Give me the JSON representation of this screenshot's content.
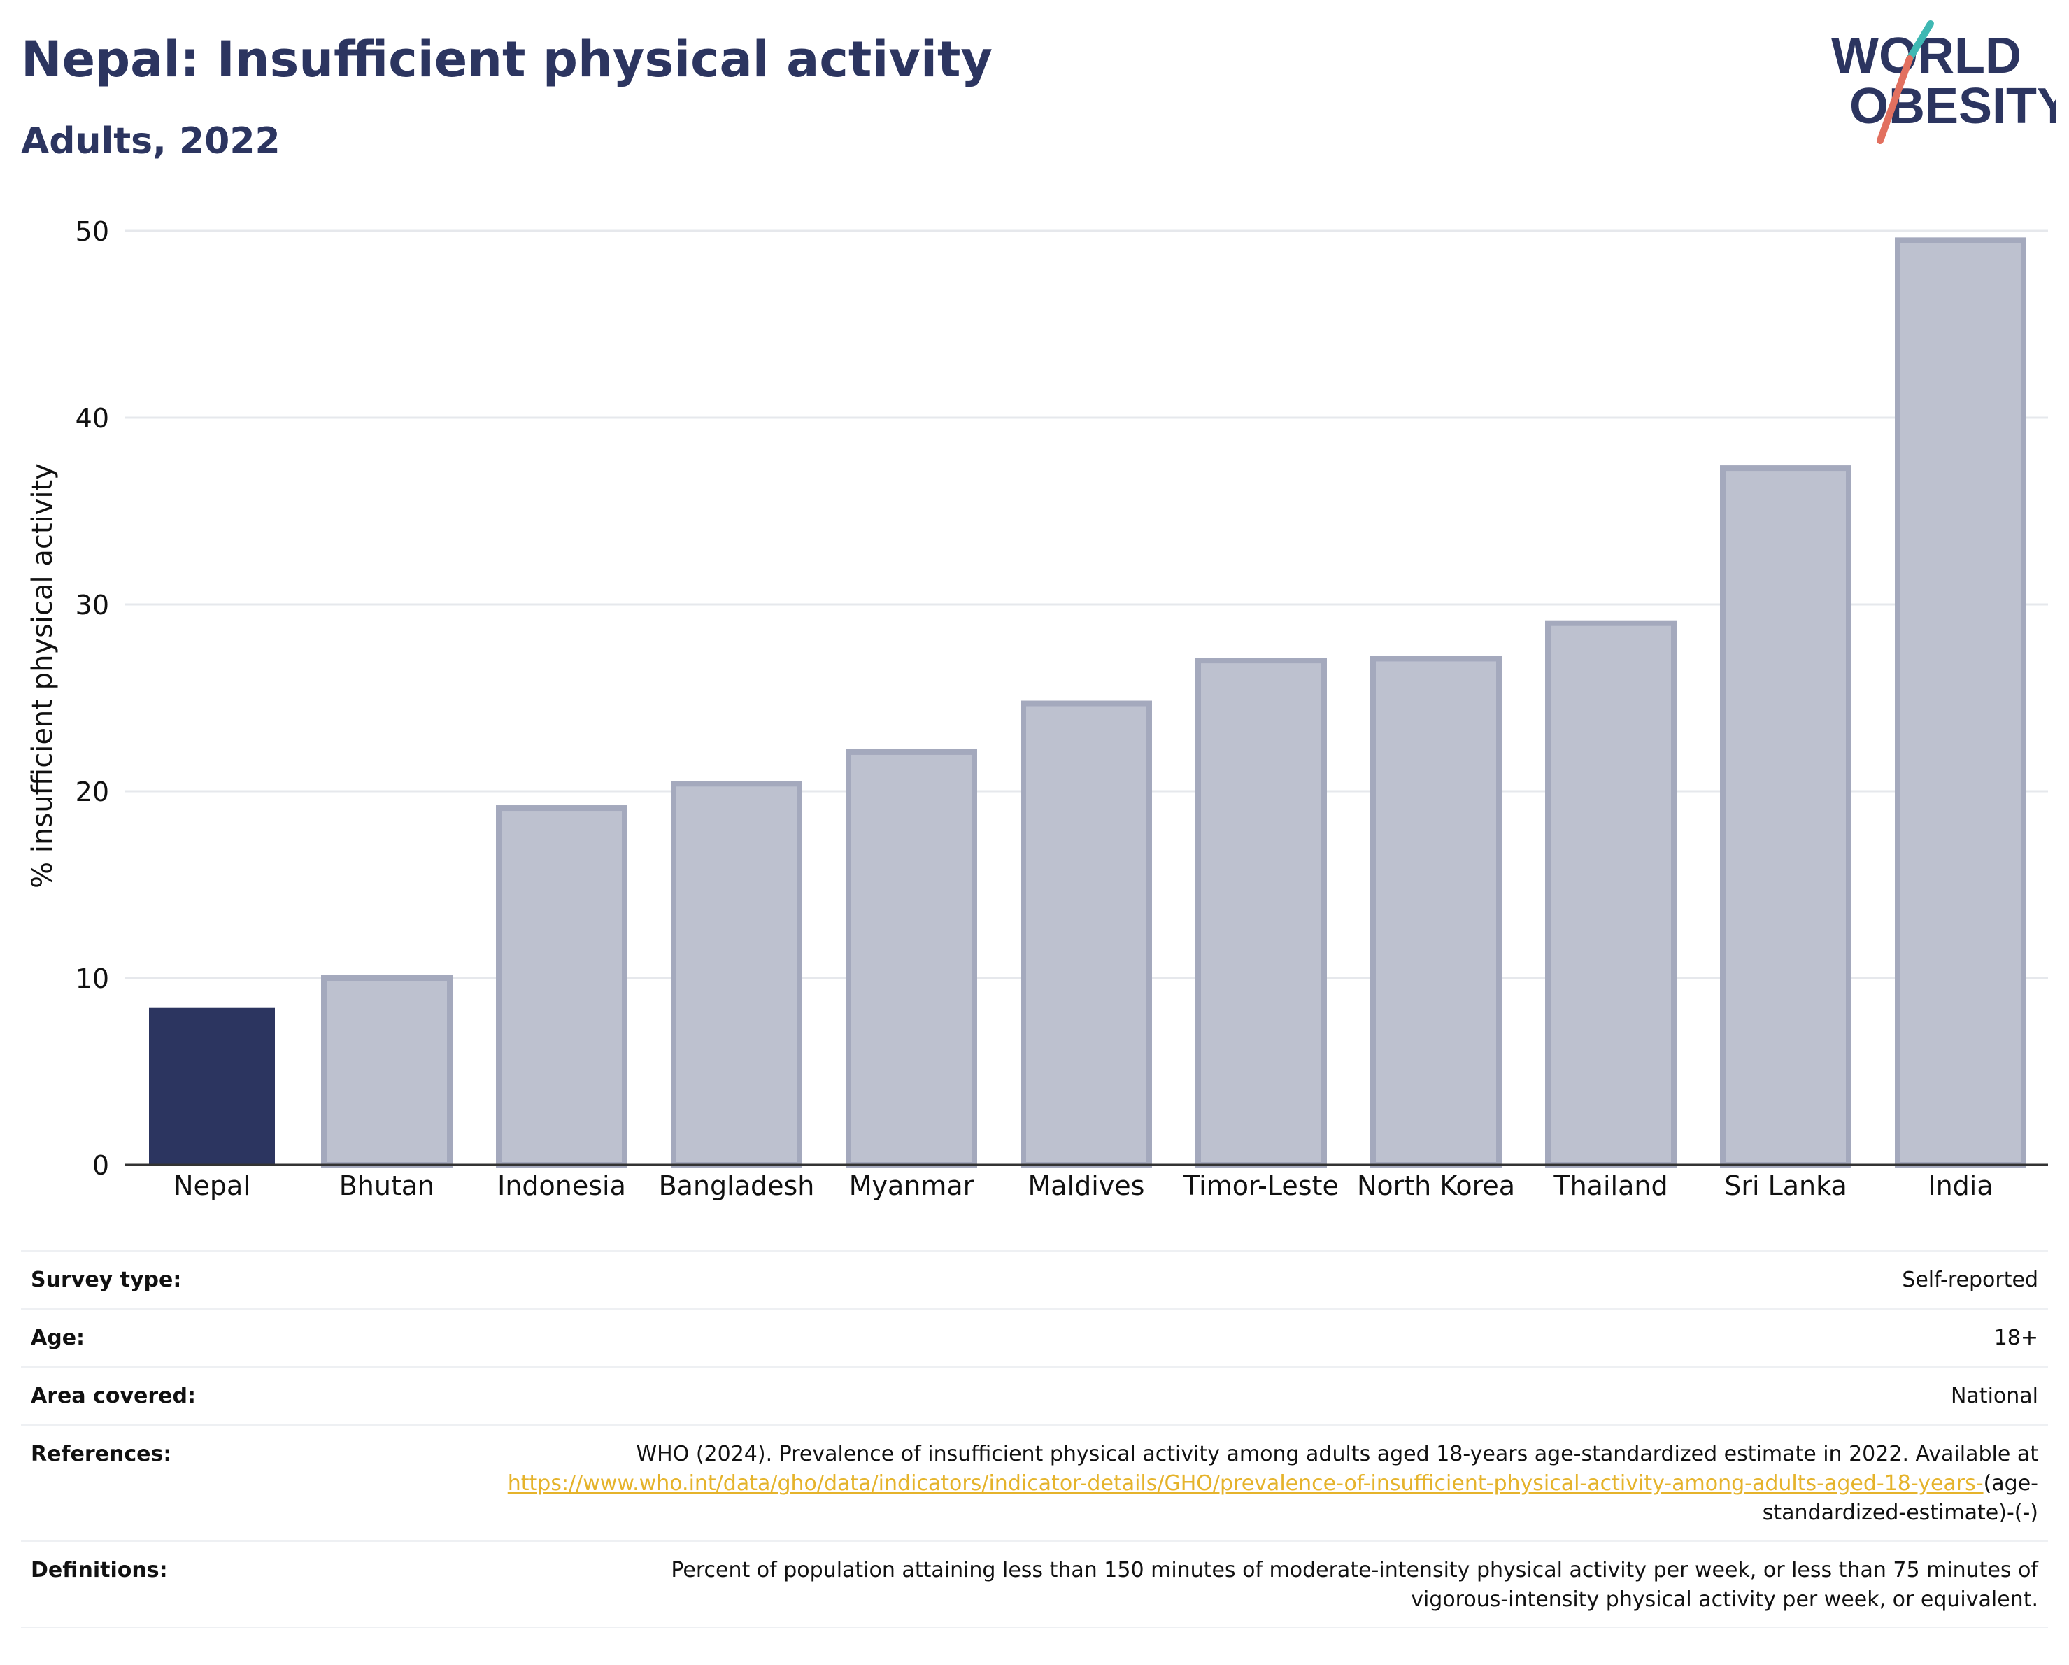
{
  "header": {
    "title": "Nepal: Insufficient physical activity",
    "subtitle": "Adults, 2022",
    "logo": {
      "line1": "WORLD",
      "line2": "OBESITY",
      "colors": {
        "text": "#2c3560",
        "slash_teal": "#3fb8b3",
        "slash_red": "#e2705f"
      }
    }
  },
  "chart_data": {
    "type": "bar",
    "title": "Nepal: Insufficient physical activity",
    "subtitle": "Adults, 2022",
    "xlabel": "",
    "ylabel": "% insufficient physical activity",
    "ylim": [
      0,
      50
    ],
    "yticks": [
      "0",
      "10",
      "20",
      "30",
      "40",
      "50"
    ],
    "grid": true,
    "categories": [
      "Nepal",
      "Bhutan",
      "Indonesia",
      "Bangladesh",
      "Myanmar",
      "Maldives",
      "Timor-Leste",
      "North Korea",
      "Thailand",
      "Sri Lanka",
      "India"
    ],
    "values": [
      8.4,
      10.0,
      19.1,
      20.4,
      22.1,
      24.7,
      27.0,
      27.1,
      29.0,
      37.3,
      49.5
    ],
    "highlight": "Nepal",
    "colors": {
      "highlight": "#2c3560",
      "others_fill": "#bdc1cf",
      "others_stroke": "#a4a9bd",
      "grid": "#e6e8ec",
      "axis": "#333333"
    }
  },
  "meta": {
    "survey_type": {
      "label": "Survey type:",
      "value": "Self-reported"
    },
    "age": {
      "label": "Age:",
      "value": "18+"
    },
    "area": {
      "label": "Area covered:",
      "value": "National"
    },
    "references": {
      "label": "References:",
      "text": "WHO (2024). Prevalence of insufficient physical activity among adults aged 18-years age-standardized estimate in 2022. Available at ",
      "link": "https://www.who.int/data/gho/data/indicators/indicator-details/GHO/prevalence-of-insufficient-physical-activity-among-adults-aged-18-years-",
      "tail": "(age-standardized-estimate)-(-)"
    },
    "definitions": {
      "label": "Definitions:",
      "value": "Percent of population attaining less than 150 minutes of moderate-intensity physical activity per week, or less than 75 minutes of vigorous-intensity physical activity per week, or equivalent."
    }
  }
}
